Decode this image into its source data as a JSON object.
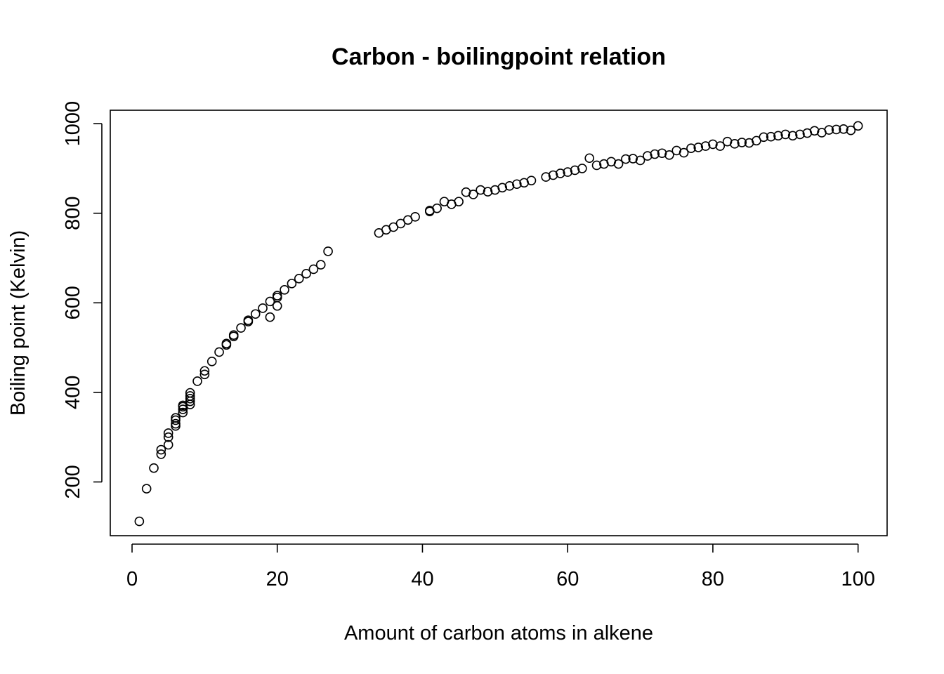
{
  "chart_data": {
    "type": "scatter",
    "title": "Carbon - boilingpoint relation",
    "xlabel": "Amount of carbon atoms in alkene",
    "ylabel": "Boiling point (Kelvin)",
    "xlim": [
      -3,
      104
    ],
    "ylim": [
      80,
      1030
    ],
    "xticks": [
      0,
      20,
      40,
      60,
      80,
      100
    ],
    "yticks": [
      200,
      400,
      600,
      800,
      1000
    ],
    "grid": false,
    "legend": "none",
    "marker": "open-circle",
    "color": "#000000",
    "points": [
      [
        1,
        112
      ],
      [
        2,
        185
      ],
      [
        3,
        231
      ],
      [
        4,
        262
      ],
      [
        4,
        272
      ],
      [
        5,
        283
      ],
      [
        5,
        300
      ],
      [
        5,
        309
      ],
      [
        6,
        325
      ],
      [
        6,
        330
      ],
      [
        6,
        338
      ],
      [
        6,
        343
      ],
      [
        7,
        355
      ],
      [
        7,
        362
      ],
      [
        7,
        368
      ],
      [
        7,
        371
      ],
      [
        8,
        373
      ],
      [
        8,
        380
      ],
      [
        8,
        386
      ],
      [
        8,
        392
      ],
      [
        8,
        399
      ],
      [
        9,
        425
      ],
      [
        10,
        440
      ],
      [
        10,
        448
      ],
      [
        11,
        469
      ],
      [
        12,
        490
      ],
      [
        13,
        506
      ],
      [
        13,
        509
      ],
      [
        14,
        525
      ],
      [
        14,
        528
      ],
      [
        15,
        544
      ],
      [
        16,
        558
      ],
      [
        16,
        561
      ],
      [
        17,
        575
      ],
      [
        18,
        588
      ],
      [
        19,
        568
      ],
      [
        19,
        603
      ],
      [
        20,
        593
      ],
      [
        20,
        612
      ],
      [
        20,
        616
      ],
      [
        21,
        629
      ],
      [
        22,
        643
      ],
      [
        23,
        654
      ],
      [
        24,
        665
      ],
      [
        25,
        675
      ],
      [
        26,
        685
      ],
      [
        27,
        715
      ],
      [
        34,
        756
      ],
      [
        35,
        763
      ],
      [
        36,
        769
      ],
      [
        37,
        777
      ],
      [
        38,
        785
      ],
      [
        39,
        792
      ],
      [
        41,
        804
      ],
      [
        41,
        806
      ],
      [
        42,
        811
      ],
      [
        43,
        826
      ],
      [
        44,
        820
      ],
      [
        45,
        826
      ],
      [
        46,
        847
      ],
      [
        47,
        842
      ],
      [
        48,
        852
      ],
      [
        49,
        848
      ],
      [
        50,
        852
      ],
      [
        51,
        857
      ],
      [
        52,
        861
      ],
      [
        53,
        865
      ],
      [
        54,
        868
      ],
      [
        55,
        873
      ],
      [
        57,
        881
      ],
      [
        58,
        885
      ],
      [
        59,
        889
      ],
      [
        60,
        892
      ],
      [
        61,
        896
      ],
      [
        62,
        900
      ],
      [
        63,
        923
      ],
      [
        64,
        907
      ],
      [
        65,
        910
      ],
      [
        66,
        915
      ],
      [
        67,
        910
      ],
      [
        68,
        921
      ],
      [
        69,
        922
      ],
      [
        70,
        918
      ],
      [
        71,
        928
      ],
      [
        72,
        932
      ],
      [
        73,
        934
      ],
      [
        74,
        930
      ],
      [
        75,
        940
      ],
      [
        76,
        935
      ],
      [
        77,
        945
      ],
      [
        78,
        947
      ],
      [
        79,
        950
      ],
      [
        80,
        954
      ],
      [
        81,
        950
      ],
      [
        82,
        960
      ],
      [
        83,
        955
      ],
      [
        84,
        958
      ],
      [
        85,
        957
      ],
      [
        86,
        962
      ],
      [
        87,
        970
      ],
      [
        88,
        971
      ],
      [
        89,
        973
      ],
      [
        90,
        976
      ],
      [
        91,
        973
      ],
      [
        92,
        976
      ],
      [
        93,
        979
      ],
      [
        94,
        984
      ],
      [
        95,
        980
      ],
      [
        96,
        986
      ],
      [
        97,
        987
      ],
      [
        98,
        988
      ],
      [
        99,
        985
      ],
      [
        100,
        995
      ]
    ]
  }
}
